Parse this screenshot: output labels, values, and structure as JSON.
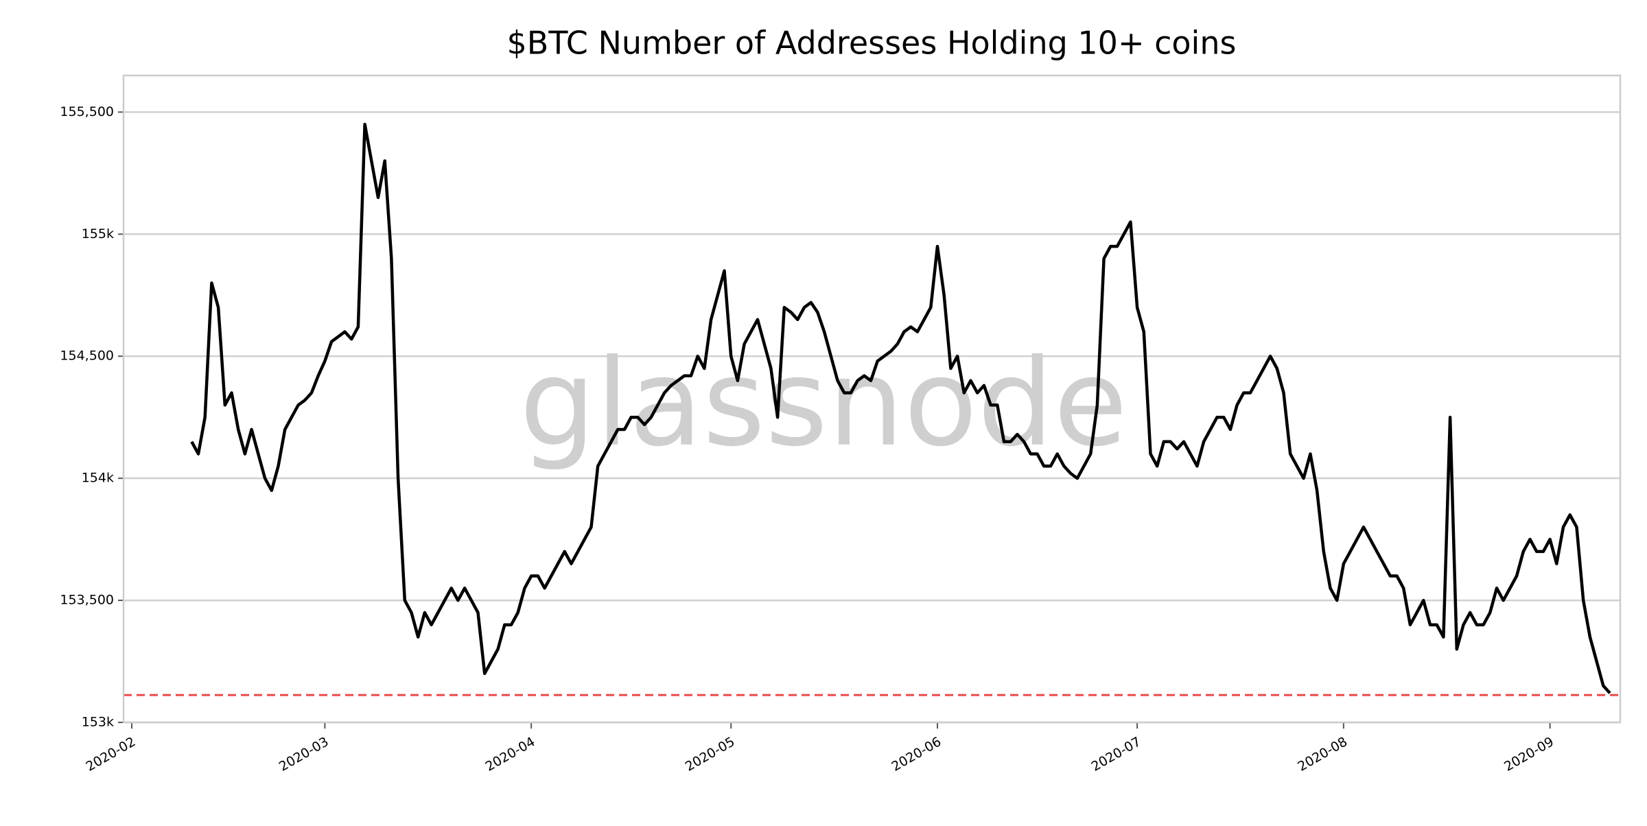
{
  "chart_data": {
    "type": "line",
    "title": "$BTC Number of Addresses Holding 10+ coins",
    "watermark": "glassnode",
    "categories": [
      "2020-02",
      null,
      null,
      null,
      null,
      null,
      null,
      null,
      null,
      null,
      null,
      null,
      null,
      null,
      null,
      null,
      null,
      null,
      null,
      null,
      null,
      null,
      null,
      null,
      null,
      null,
      null,
      null,
      null,
      "2020-03",
      null,
      null,
      null,
      null,
      null,
      null,
      null,
      null,
      null,
      null,
      null,
      null,
      null,
      null,
      null,
      null,
      null,
      null,
      null,
      null,
      null,
      null,
      null,
      null,
      null,
      null,
      null,
      null,
      null,
      null,
      "2020-04",
      null,
      null,
      null,
      null,
      null,
      null,
      null,
      null,
      null,
      null,
      null,
      null,
      null,
      null,
      null,
      null,
      null,
      null,
      null,
      null,
      null,
      null,
      null,
      null,
      null,
      null,
      null,
      null,
      null,
      "2020-05",
      null,
      null,
      null,
      null,
      null,
      null,
      null,
      null,
      null,
      null,
      null,
      null,
      null,
      null,
      null,
      null,
      null,
      null,
      null,
      null,
      null,
      null,
      null,
      null,
      null,
      null,
      null,
      null,
      null,
      null,
      "2020-06",
      null,
      null,
      null,
      null,
      null,
      null,
      null,
      null,
      null,
      null,
      null,
      null,
      null,
      null,
      null,
      null,
      null,
      null,
      null,
      null,
      null,
      null,
      null,
      null,
      null,
      null,
      null,
      null,
      null,
      "2020-07",
      null,
      null,
      null,
      null,
      null,
      null,
      null,
      null,
      null,
      null,
      null,
      null,
      null,
      null,
      null,
      null,
      null,
      null,
      null,
      null,
      null,
      null,
      null,
      null,
      null,
      null,
      null,
      null,
      null,
      null,
      "2020-08",
      null,
      null,
      null,
      null,
      null,
      null,
      null,
      null,
      null,
      null,
      null,
      null,
      null,
      null,
      null,
      null,
      null,
      null,
      null,
      null,
      null,
      null,
      null,
      null,
      null,
      null,
      null,
      null,
      null,
      null,
      "2020-09",
      null,
      null,
      null,
      null,
      null,
      null,
      null,
      null,
      null
    ],
    "series": [
      {
        "color": "#000000",
        "values": [
          null,
          null,
          null,
          null,
          null,
          null,
          null,
          null,
          null,
          154150,
          154100,
          154250,
          154800,
          154700,
          154300,
          154350,
          154200,
          154100,
          154200,
          154100,
          154000,
          153950,
          154050,
          154200,
          154250,
          154300,
          154320,
          154350,
          154420,
          154480,
          154560,
          154580,
          154600,
          154570,
          154620,
          155450,
          155300,
          155150,
          155300,
          154900,
          154000,
          153500,
          153450,
          153350,
          153450,
          153400,
          153450,
          153500,
          153550,
          153500,
          153550,
          153500,
          153450,
          153200,
          153250,
          153300,
          153400,
          153400,
          153450,
          153550,
          153600,
          153600,
          153550,
          153600,
          153650,
          153700,
          153650,
          153700,
          153750,
          153800,
          154050,
          154100,
          154150,
          154200,
          154200,
          154250,
          154250,
          154220,
          154250,
          154300,
          154350,
          154380,
          154400,
          154420,
          154420,
          154500,
          154450,
          154650,
          154750,
          154850,
          154500,
          154400,
          154550,
          154600,
          154650,
          154550,
          154450,
          154250,
          154700,
          154680,
          154650,
          154700,
          154720,
          154680,
          154600,
          154500,
          154400,
          154350,
          154350,
          154400,
          154420,
          154400,
          154480,
          154500,
          154520,
          154550,
          154600,
          154620,
          154600,
          154650,
          154700,
          154950,
          154750,
          154450,
          154500,
          154350,
          154400,
          154350,
          154380,
          154300,
          154300,
          154150,
          154150,
          154180,
          154150,
          154100,
          154100,
          154050,
          154050,
          154100,
          154050,
          154020,
          154000,
          154050,
          154100,
          154300,
          154900,
          154950,
          154950,
          155000,
          155050,
          154700,
          154600,
          154100,
          154050,
          154150,
          154150,
          154120,
          154150,
          154100,
          154050,
          154150,
          154200,
          154250,
          154250,
          154200,
          154300,
          154350,
          154350,
          154400,
          154450,
          154500,
          154450,
          154350,
          154100,
          154050,
          154000,
          154100,
          153950,
          153700,
          153550,
          153500,
          153650,
          153700,
          153750,
          153800,
          153750,
          153700,
          153650,
          153600,
          153600,
          153550,
          153400,
          153450,
          153500,
          153400,
          153400,
          153350,
          154250,
          153300,
          153400,
          153450,
          153400,
          153400,
          153450,
          153550,
          153500,
          153550,
          153600,
          153700,
          153750,
          153700,
          153700,
          153750,
          153650,
          153800,
          153850,
          153800,
          153500,
          153350,
          153250,
          153150,
          153120
        ]
      }
    ],
    "reference_line": {
      "value": 153112,
      "color": "#e84a4a",
      "style": "dashed"
    },
    "ylim": [
      153000,
      155650
    ],
    "yticks": [
      {
        "value": 153000,
        "label": "153k"
      },
      {
        "value": 153500,
        "label": "153,500"
      },
      {
        "value": 154000,
        "label": "154k"
      },
      {
        "value": 154500,
        "label": "154,500"
      },
      {
        "value": 155000,
        "label": "155k"
      },
      {
        "value": 155500,
        "label": "155,500"
      }
    ],
    "grid": true
  }
}
